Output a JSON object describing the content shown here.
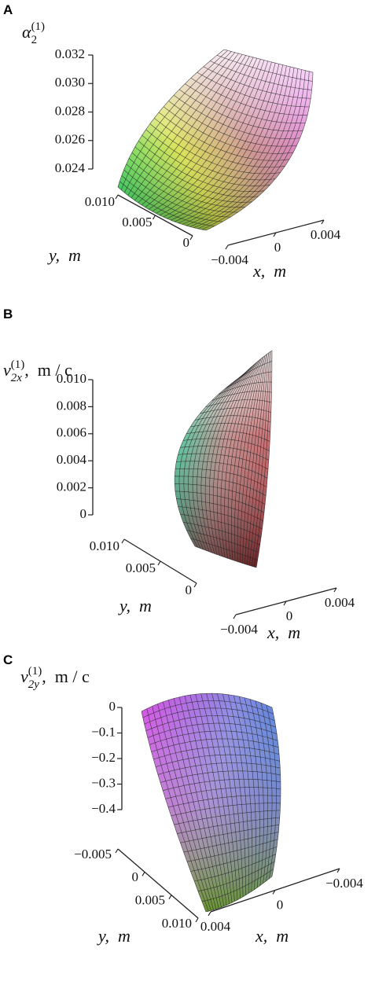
{
  "chart_data": [
    {
      "type": "surface",
      "panel": "A",
      "zlabel": {
        "base": "α",
        "sub": "2",
        "sup": "(1)"
      },
      "ylabel": "y,  m",
      "xlabel": "x,  m",
      "zlim": [
        0.024,
        0.032
      ],
      "zticks": [
        0.024,
        0.026,
        0.028,
        {
          "value": 0.03,
          "label": "0.030"
        },
        0.032
      ],
      "ylim": [
        0,
        0.01
      ],
      "yticks": [
        {
          "value": 0.01,
          "label": "0.010"
        },
        0.005,
        0
      ],
      "xlim": [
        -0.004,
        0.004
      ],
      "xticks": [
        {
          "value": -0.004,
          "label": "−0.004"
        },
        0,
        0.004
      ]
    },
    {
      "type": "surface",
      "panel": "B",
      "zlabel": {
        "base": "v",
        "sub": "2x",
        "sup": "(1)",
        "unit": ",  m / c"
      },
      "ylabel": "y,  m",
      "xlabel": "x,  m",
      "zlim": [
        0,
        0.01
      ],
      "zticks": [
        {
          "value": 0.01,
          "label": "0.010"
        },
        0.008,
        0.006,
        0.004,
        0.002,
        0
      ],
      "ylim": [
        0,
        0.01
      ],
      "yticks": [
        {
          "value": 0.01,
          "label": "0.010"
        },
        0.005,
        0
      ],
      "xlim": [
        -0.004,
        0.004
      ],
      "xticks": [
        {
          "value": -0.004,
          "label": "−0.004"
        },
        0,
        0.004
      ]
    },
    {
      "type": "surface",
      "panel": "C",
      "zlabel": {
        "base": "v",
        "sub": "2y",
        "sup": "(1)",
        "unit": ",  m / c"
      },
      "ylabel": "y,  m",
      "xlabel": "x,  m",
      "zlim": [
        -0.4,
        0
      ],
      "zticks": [
        0,
        {
          "value": -0.1,
          "label": "−0.1"
        },
        {
          "value": -0.2,
          "label": "−0.2"
        },
        {
          "value": -0.3,
          "label": "−0.3"
        },
        {
          "value": -0.4,
          "label": "−0.4"
        }
      ],
      "ylim": [
        -0.005,
        0.01
      ],
      "yticks": [
        {
          "value": -0.005,
          "label": "−0.005"
        },
        0,
        0.005,
        {
          "value": 0.01,
          "label": "0.010"
        }
      ],
      "xlim": [
        0.004,
        -0.004
      ],
      "xticks": [
        0.004,
        0,
        {
          "value": -0.004,
          "label": "−0.004"
        }
      ]
    }
  ]
}
